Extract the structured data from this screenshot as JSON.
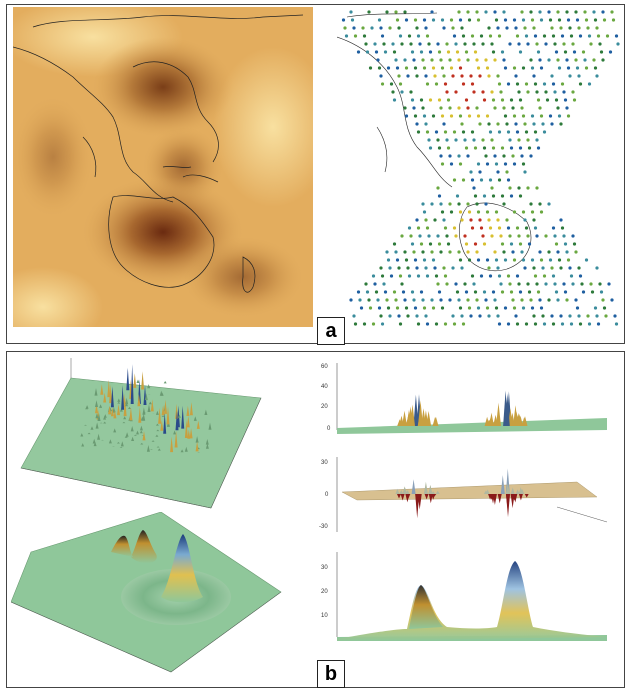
{
  "panel_a": {
    "label": "a"
  },
  "panel_b": {
    "label": "b",
    "profile_top": {
      "y_ticks": [
        "60",
        "40",
        "20",
        "0"
      ]
    },
    "profile_middle": {
      "y_ticks": [
        "30",
        "0",
        "-30"
      ]
    },
    "profile_bottom": {
      "y_ticks": [
        "30",
        "20",
        "10"
      ]
    }
  },
  "colors": {
    "map_base": "#e8b868",
    "map_dark": "#8a4a1e",
    "surface_green": "#8fc79a",
    "peak_blue": "#2a5a9a",
    "peak_yellow": "#d8b040",
    "negative_red": "#9a1a1a"
  }
}
